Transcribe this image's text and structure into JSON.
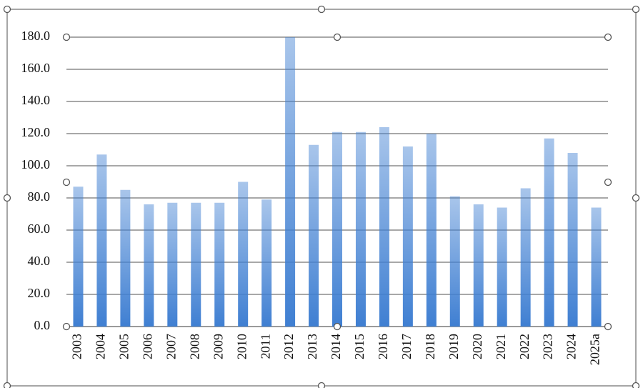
{
  "chart_data": {
    "type": "bar",
    "categories": [
      "2003",
      "2004",
      "2005",
      "2006",
      "2007",
      "2008",
      "2009",
      "2010",
      "2011",
      "2012",
      "2013",
      "2014",
      "2015",
      "2016",
      "2017",
      "2018",
      "2019",
      "2020",
      "2021",
      "2022",
      "2023",
      "2024",
      "2025a"
    ],
    "values": [
      87,
      107,
      85,
      76,
      77,
      77,
      77,
      90,
      79,
      180,
      113,
      121,
      121,
      124,
      112,
      120,
      81,
      76,
      74,
      86,
      117,
      108,
      74
    ],
    "color": "#3f7fd2",
    "ylim": [
      0,
      180
    ],
    "yticks": [
      {
        "value": 0,
        "label": "0.0"
      },
      {
        "value": 20,
        "label": "20.0"
      },
      {
        "value": 40,
        "label": "40.0"
      },
      {
        "value": 60,
        "label": "60.0"
      },
      {
        "value": 80,
        "label": "80.0"
      },
      {
        "value": 100,
        "label": "100.0"
      },
      {
        "value": 120,
        "label": "120.0"
      },
      {
        "value": 140,
        "label": "140.0"
      },
      {
        "value": 160,
        "label": "160.0"
      },
      {
        "value": 180,
        "label": "180.0"
      }
    ],
    "grid": true
  }
}
